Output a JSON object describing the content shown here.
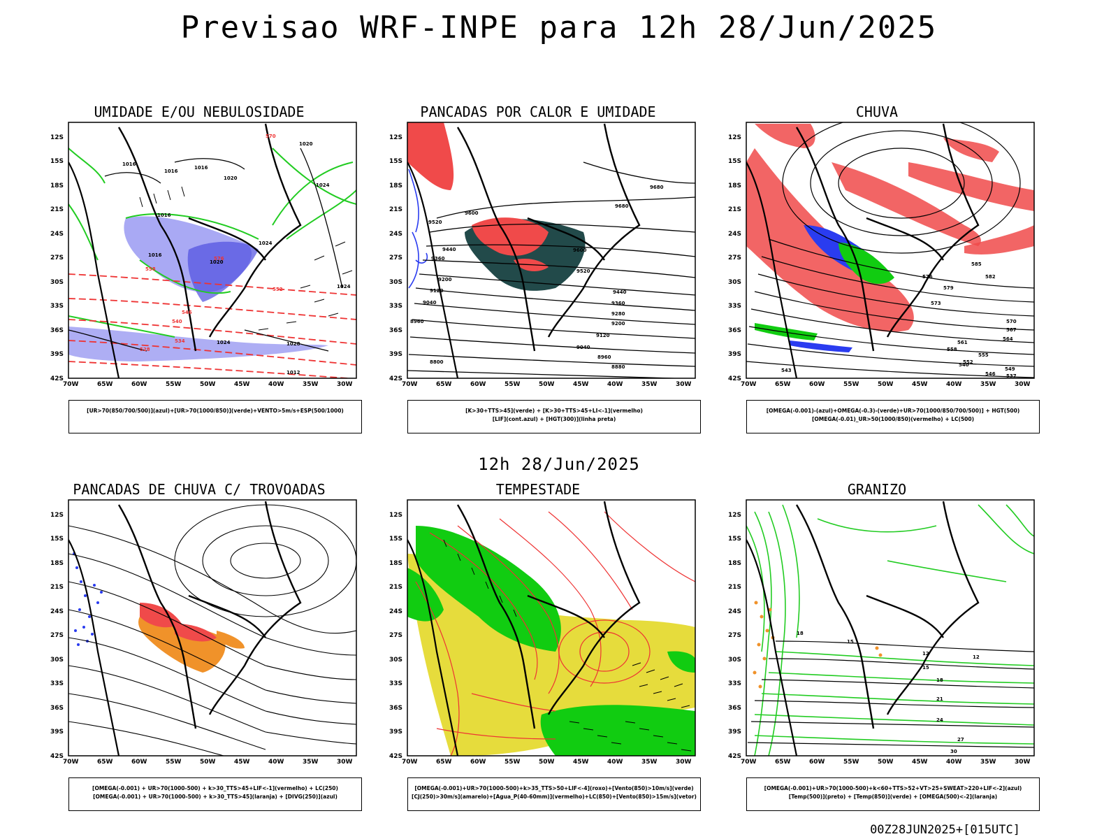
{
  "title": "Previsao WRF-INPE  para 12h 28/Jun/2025",
  "middle_time": "12h 28/Jun/2025",
  "footer": "00Z28JUN2025+[015UTC]",
  "axes": {
    "lat_labels": [
      "12S",
      "15S",
      "18S",
      "21S",
      "24S",
      "27S",
      "30S",
      "33S",
      "36S",
      "39S",
      "42S"
    ],
    "lon_labels": [
      "70W",
      "65W",
      "60W",
      "55W",
      "50W",
      "45W",
      "40W",
      "35W",
      "30W"
    ]
  },
  "colors": {
    "blue_shade": "#8c8cf0",
    "green_line": "#22cc22",
    "red_dash": "#ee3333",
    "red_fill": "#f04a4a",
    "dark_teal": "#224a4a",
    "green_fill": "#11cc11",
    "yellow_fill": "#e6dc3c",
    "orange": "#f0922a",
    "blue_dots": "#2a3cf0"
  },
  "panels": [
    {
      "id": "umidade",
      "title": "UMIDADE E/OU NEBULOSIDADE",
      "legend": [
        "[UR>70(850/700/500)](azul)+[UR>70(1000/850)](verde)+VENTO>5m/s+ESP(500/1000)"
      ],
      "contour_labels": [
        "1016",
        "1016",
        "1016",
        "1020",
        "1020",
        "1024",
        "1024",
        "1024",
        "1024",
        "1028",
        "1012",
        "1016",
        "1020",
        "1016",
        "570",
        "576",
        "558",
        "552",
        "546",
        "540",
        "534",
        "528"
      ]
    },
    {
      "id": "pancadas_calor",
      "title": "PANCADAS POR CALOR E UMIDADE",
      "legend": [
        "[K>30+TTS>45](verde) + [K>30+TTS>45+LI<-1](vermelho)",
        "[LIF](cont.azul) + [HGT(300)](linha preta)"
      ],
      "contour_labels": [
        "9680",
        "9680",
        "9600",
        "9520",
        "9440",
        "9360",
        "9280",
        "9200",
        "9120",
        "9040",
        "8960",
        "8880",
        "8800",
        "9600",
        "9520",
        "9440",
        "9360",
        "9200",
        "9120",
        "9040",
        "8960"
      ]
    },
    {
      "id": "chuva",
      "title": "CHUVA",
      "legend": [
        "[OMEGA(-0.001)-(azul)+OMEGA(-0.3)-(verde)+UR>70(1000/850/700/500)] + HGT(500)",
        "[OMEGA(-0.01)_UR>50(1000/850)(vermelho) + LC(500)"
      ],
      "contour_labels": [
        "585",
        "582",
        "579",
        "576",
        "573",
        "570",
        "567",
        "564",
        "561",
        "558",
        "555",
        "552",
        "549",
        "546",
        "543",
        "540",
        "537"
      ]
    },
    {
      "id": "trovoadas",
      "title": "PANCADAS DE CHUVA C/ TROVOADAS",
      "legend": [
        "[OMEGA(-0.001) + UR>70(1000-500) + k>30_TTS>45+LIF<-1](vermelho) + LC(250)",
        "[OMEGA(-0.001) + UR>70(1000-500) + k>30_TTS>45](laranja) + [DIVG(250)](azul)"
      ],
      "contour_labels": []
    },
    {
      "id": "tempestade",
      "title": "TEMPESTADE",
      "legend": [
        "[OMEGA(-0.001)+UR>70(1000-500)+k>35_TTS>50+LIF<-4](roxo)+[Vento(850)>10m/s](verde)",
        "[CJ(250)>30m/s](amarelo)+[Agua_P(40-60mm)](vermelho)+LC(850)+[Vento(850)>15m/s](vetor)"
      ],
      "contour_labels": []
    },
    {
      "id": "granizo",
      "title": "GRANIZO",
      "legend": [
        "[OMEGA(-0.001)+UR>70(1000-500)+k<60+TTS>52+VT>25+SWEAT>220+LIF<-2](azul)",
        "[Temp(500)](preto) + [Temp(850)](verde) + [OMEGA(500)<-2](laranja)"
      ],
      "contour_labels": [
        "18",
        "15",
        "12",
        "12",
        "15",
        "18",
        "21",
        "24",
        "27",
        "30"
      ]
    }
  ]
}
